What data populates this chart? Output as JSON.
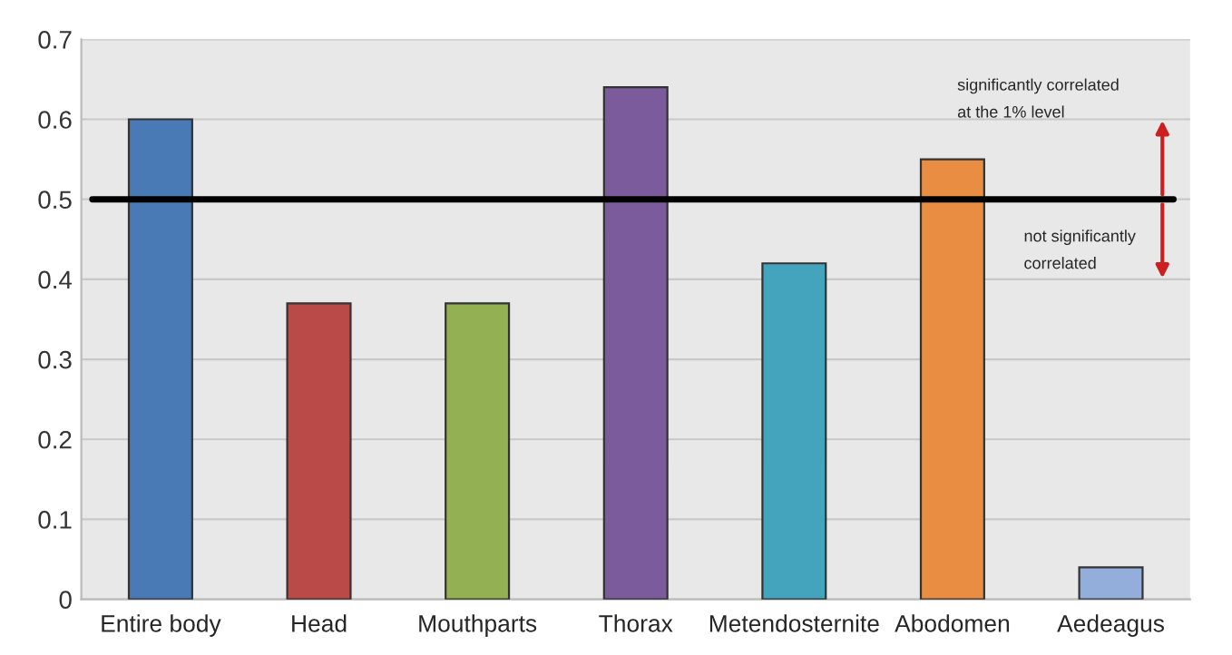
{
  "chart_data": {
    "type": "bar",
    "categories": [
      "Entire body",
      "Head",
      "Mouthparts",
      "Thorax",
      "Metendosternite",
      "Abodomen",
      "Aedeagus"
    ],
    "values": [
      0.6,
      0.37,
      0.37,
      0.64,
      0.42,
      0.55,
      0.04
    ],
    "colors": [
      "#4a7ab5",
      "#b94a48",
      "#93b052",
      "#7b5b9b",
      "#44a3bd",
      "#e98d42",
      "#93aedb"
    ],
    "ylim": [
      0,
      0.7
    ],
    "yticks": [
      0,
      0.1,
      0.2,
      0.3,
      0.4,
      0.5,
      0.6,
      0.7
    ],
    "grid": "y",
    "ref_lines": [
      {
        "axis": "y",
        "value": 0.5,
        "color": "#000000"
      }
    ],
    "annotations": [
      "significantly correlated\nat the 1% level",
      "not significantly\ncorrelated"
    ]
  }
}
